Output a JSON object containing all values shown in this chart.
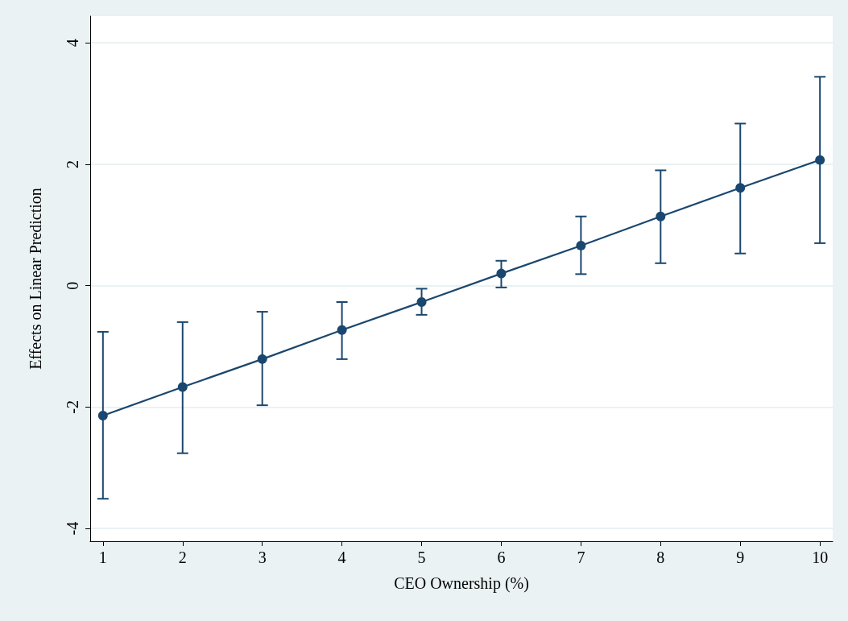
{
  "chart_data": {
    "type": "line",
    "xlabel": "CEO Ownership (%)",
    "ylabel": "Effects on Linear Prediction",
    "x": [
      1,
      2,
      3,
      4,
      5,
      6,
      7,
      8,
      9,
      10
    ],
    "series": [
      {
        "color": "#1a476f",
        "values": [
          -2.14,
          -1.67,
          -1.21,
          -0.73,
          -0.27,
          0.2,
          0.66,
          1.14,
          1.61,
          2.07
        ],
        "errors": [
          [
            -3.51,
            -0.76
          ],
          [
            -2.76,
            -0.6
          ],
          [
            -1.97,
            -0.43
          ],
          [
            -1.21,
            -0.27
          ],
          [
            -0.48,
            -0.05
          ],
          [
            -0.03,
            0.41
          ],
          [
            0.19,
            1.14
          ],
          [
            0.37,
            1.9
          ],
          [
            0.53,
            2.67
          ],
          [
            0.7,
            3.44
          ]
        ]
      }
    ],
    "xlim": [
      0.84,
      10.16
    ],
    "xticks": [
      1,
      2,
      3,
      4,
      5,
      6,
      7,
      8,
      9,
      10
    ],
    "ylim": [
      -4.21,
      4.44
    ],
    "yticks": [
      -4,
      -2,
      0,
      2,
      4
    ],
    "grid": "y",
    "marker": "circle",
    "line_style": "solid"
  }
}
